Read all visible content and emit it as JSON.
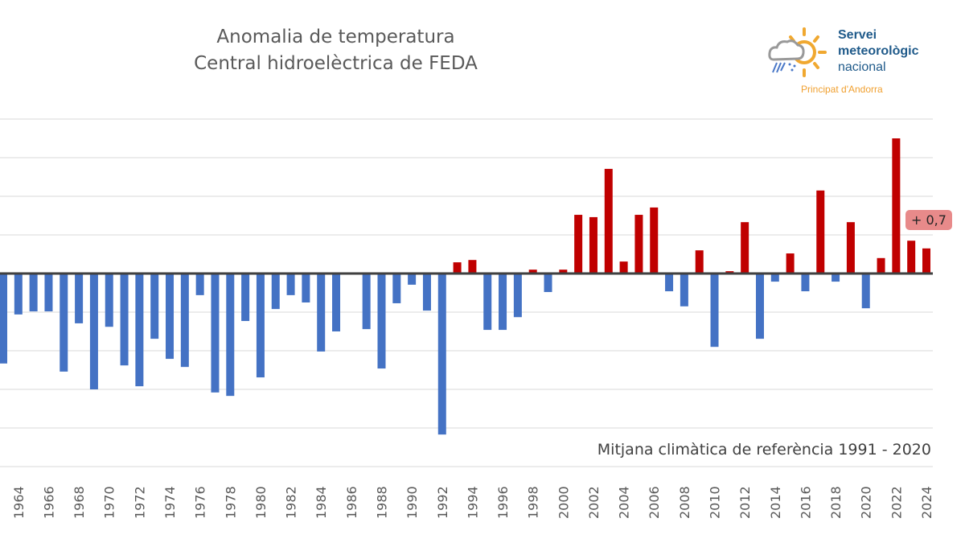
{
  "chart_data": {
    "type": "bar",
    "title": [
      "Anomalia de temperatura",
      "Central hidroelèctrica de FEDA"
    ],
    "xlabel": "",
    "ylabel": "",
    "ylim": [
      -5,
      4
    ],
    "grid": true,
    "x_tick_labels": [
      "1964",
      "1966",
      "1968",
      "1970",
      "1972",
      "1974",
      "1976",
      "1978",
      "1980",
      "1982",
      "1984",
      "1986",
      "1988",
      "1990",
      "1992",
      "1994",
      "1996",
      "1998",
      "2000",
      "2002",
      "2004",
      "2006",
      "2008",
      "2010",
      "2012",
      "2014",
      "2016",
      "2018",
      "2020",
      "2022",
      "2024"
    ],
    "categories": [
      1963,
      1964,
      1965,
      1966,
      1967,
      1968,
      1969,
      1970,
      1971,
      1972,
      1973,
      1974,
      1975,
      1976,
      1977,
      1978,
      1979,
      1980,
      1981,
      1982,
      1983,
      1984,
      1985,
      1986,
      1987,
      1988,
      1989,
      1990,
      1991,
      1992,
      1993,
      1994,
      1995,
      1996,
      1997,
      1998,
      1999,
      2000,
      2001,
      2002,
      2003,
      2004,
      2005,
      2006,
      2007,
      2008,
      2009,
      2010,
      2011,
      2012,
      2013,
      2014,
      2015,
      2016,
      2017,
      2018,
      2019,
      2020,
      2021,
      2022,
      2023,
      2024
    ],
    "values": [
      -2.33,
      -1.06,
      -0.98,
      -0.98,
      -2.54,
      -1.29,
      -3.0,
      -1.38,
      -2.38,
      -2.92,
      -1.69,
      -2.21,
      -2.42,
      -0.56,
      -3.08,
      -3.17,
      -1.23,
      -2.69,
      -0.92,
      -0.56,
      -0.75,
      -2.02,
      -1.5,
      0,
      -1.44,
      -2.46,
      -0.77,
      -0.29,
      -0.96,
      -4.17,
      0.29,
      0.35,
      -1.46,
      -1.46,
      -1.13,
      0.1,
      -0.48,
      0.1,
      1.52,
      1.46,
      2.71,
      0.31,
      1.52,
      1.71,
      -0.46,
      -0.85,
      0.6,
      -1.9,
      0.06,
      1.33,
      -1.69,
      -0.21,
      0.52,
      -0.46,
      2.15,
      -0.21,
      1.33,
      -0.9,
      0.4,
      3.5,
      0.85,
      0.65
    ],
    "annotations": [
      {
        "year": 2024,
        "text": "+ 0,7"
      }
    ],
    "note": "Mitjana climàtica de referència 1991 - 2020",
    "colors": {
      "positive": "#c00000",
      "negative": "#4472c4",
      "zero_line": "#404040",
      "grid": "#d9d9d9"
    }
  },
  "logo": {
    "line1": "Servei",
    "line2": "meteorològic",
    "line3": "nacional",
    "sub": "Principat d'Andorra"
  }
}
